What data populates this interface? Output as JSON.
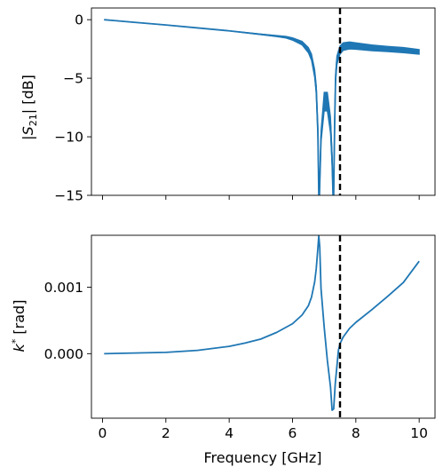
{
  "chart_data": [
    {
      "type": "line",
      "ylabel": "|S21| [dB]",
      "ylabel_parts": {
        "pre": "|",
        "main": "S",
        "sub": "21",
        "post": "| [dB]"
      },
      "xlim": [
        -0.35,
        10.5
      ],
      "ylim": [
        -15,
        1.0
      ],
      "yticks": [
        0,
        -5,
        -10,
        -15
      ],
      "ytick_labels": [
        "0",
        "−5",
        "−10",
        "−15"
      ],
      "xticks": [
        0,
        2,
        4,
        6,
        8,
        10
      ],
      "xtick_labels_shown": false,
      "grid": false,
      "vline": {
        "x": 7.5,
        "style": "dashed",
        "color": "#000000"
      },
      "series": [
        {
          "color": "#1f77b4",
          "x": [
            0.05,
            1,
            2,
            3,
            4,
            5,
            5.5,
            5.8,
            6.0,
            6.3,
            6.5,
            6.6,
            6.7,
            6.75,
            6.8,
            6.83,
            6.85,
            6.9,
            7.0,
            7.1,
            7.2,
            7.25,
            7.28,
            7.3,
            7.33,
            7.36,
            7.4,
            7.45,
            7.5,
            7.6,
            7.8,
            8.0,
            8.5,
            9.0,
            9.5,
            10.0
          ],
          "y": [
            0.0,
            -0.22,
            -0.45,
            -0.7,
            -0.95,
            -1.25,
            -1.4,
            -1.5,
            -1.65,
            -2.0,
            -2.6,
            -3.2,
            -4.6,
            -6.0,
            -9.5,
            -15.0,
            -15.0,
            -10.0,
            -7.0,
            -7.0,
            -9.0,
            -12.0,
            -15.0,
            -15.0,
            -9.0,
            -5.0,
            -3.5,
            -3.0,
            -2.6,
            -2.3,
            -2.2,
            -2.25,
            -2.4,
            -2.5,
            -2.6,
            -2.75
          ],
          "ripple": [
            0,
            0,
            0,
            0,
            0,
            0.05,
            0.1,
            0.15,
            0.2,
            0.3,
            0.45,
            0.55,
            0.7,
            0.8,
            0.9,
            0,
            0,
            1.0,
            1.6,
            1.6,
            1.4,
            1.0,
            0,
            0,
            0.9,
            0.8,
            0.75,
            0.7,
            0.7,
            0.65,
            0.6,
            0.55,
            0.5,
            0.45,
            0.45,
            0.4
          ]
        }
      ]
    },
    {
      "type": "line",
      "xlabel": "Frequency [GHz]",
      "ylabel": "k* [rad]",
      "ylabel_parts": {
        "main": "k",
        "sup": "*",
        "post": " [rad]"
      },
      "xlim": [
        -0.35,
        10.5
      ],
      "ylim": [
        -0.00097,
        0.00178
      ],
      "yticks": [
        0.0,
        0.001
      ],
      "ytick_labels": [
        "0.000",
        "0.001"
      ],
      "xticks": [
        0,
        2,
        4,
        6,
        8,
        10
      ],
      "xtick_labels": [
        "0",
        "2",
        "4",
        "6",
        "8",
        "10"
      ],
      "grid": false,
      "vline": {
        "x": 7.5,
        "style": "dashed",
        "color": "#000000"
      },
      "series": [
        {
          "color": "#1f77b4",
          "x": [
            0.05,
            1,
            2,
            3,
            4,
            4.5,
            5,
            5.5,
            6.0,
            6.3,
            6.5,
            6.6,
            6.7,
            6.75,
            6.8,
            6.83,
            6.86,
            6.9,
            7.0,
            7.1,
            7.2,
            7.25,
            7.3,
            7.35,
            7.45,
            7.5,
            7.6,
            7.8,
            8.0,
            8.5,
            9.0,
            9.5,
            10.0
          ],
          "y": [
            0.0,
            1e-05,
            2e-05,
            5e-05,
            0.00011,
            0.00016,
            0.00022,
            0.00032,
            0.00045,
            0.00058,
            0.00072,
            0.00085,
            0.00108,
            0.00128,
            0.00158,
            0.00177,
            0.0016,
            0.00098,
            0.0004,
            -0.0001,
            -0.0005,
            -0.00085,
            -0.00083,
            -0.00045,
            5e-05,
            0.00015,
            0.00025,
            0.00038,
            0.00047,
            0.00066,
            0.00086,
            0.00107,
            0.00139
          ]
        }
      ]
    }
  ]
}
